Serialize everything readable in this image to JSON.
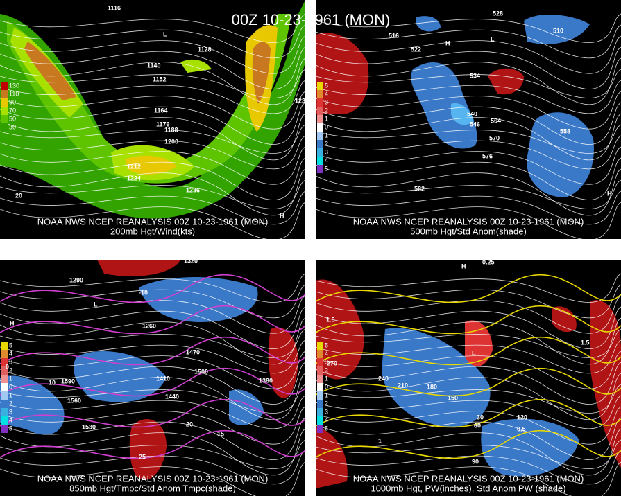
{
  "header": {
    "title": "00Z 10-23-1961 (MON)"
  },
  "panels": [
    {
      "caption": "NOAA NWS NCEP REANALYSIS 00Z 10-23-1961 (MON)",
      "subcaption": "200mb Hgt/Wind(kts)",
      "legend": [
        "130",
        "110",
        "90",
        "70",
        "50",
        "30"
      ],
      "labels": [
        "1116",
        "1128",
        "1140",
        "1152",
        "1164",
        "1176",
        "1188",
        "1200",
        "1212",
        "1224",
        "1236",
        "1236",
        "L",
        "H",
        "20"
      ]
    },
    {
      "caption": "NOAA NWS NCEP REANALYSIS 00Z 10-23-1961 (MON)",
      "subcaption": "500mb Hgt/Std Anom(shade)",
      "legend": [
        "5",
        "4",
        "3",
        "2",
        "1",
        "0",
        "1",
        "2",
        "3",
        "4",
        "5"
      ],
      "labels": [
        "516",
        "522",
        "528",
        "534",
        "540",
        "546",
        "558",
        "564",
        "570",
        "576",
        "582",
        "510",
        "L",
        "H",
        "H"
      ]
    },
    {
      "caption": "NOAA NWS NCEP REANALYSIS 00Z 10-23-1961 (MON)",
      "subcaption": "850mb Hgt/Tmpc/Std Anom Tmpc(shade)",
      "legend": [
        "5",
        "4",
        "3",
        "2",
        "1",
        "0",
        "1",
        "2",
        "3",
        "4",
        "5"
      ],
      "labels": [
        "1320",
        "1290",
        "1260",
        "1470",
        "1500",
        "1410",
        "1440",
        "1380",
        "1590",
        "1560",
        "1530",
        "-10",
        "0",
        "10",
        "15",
        "20",
        "25",
        "L",
        "H"
      ]
    },
    {
      "caption": "NOAA NWS NCEP REANALYSIS 00Z 10-23-1961 (MON)",
      "subcaption": "1000mb Hgt, PW(inches), Std Anom PW (shade)",
      "legend": [
        "5",
        "4",
        "3",
        "2",
        "1",
        "0",
        "1",
        "2",
        "3",
        "4",
        "5"
      ],
      "labels": [
        "270",
        "240",
        "210",
        "180",
        "150",
        "120",
        "90",
        "60",
        "30",
        "0.25",
        "0.5",
        "1",
        "1.5",
        "1.5",
        "L",
        "H"
      ]
    }
  ]
}
